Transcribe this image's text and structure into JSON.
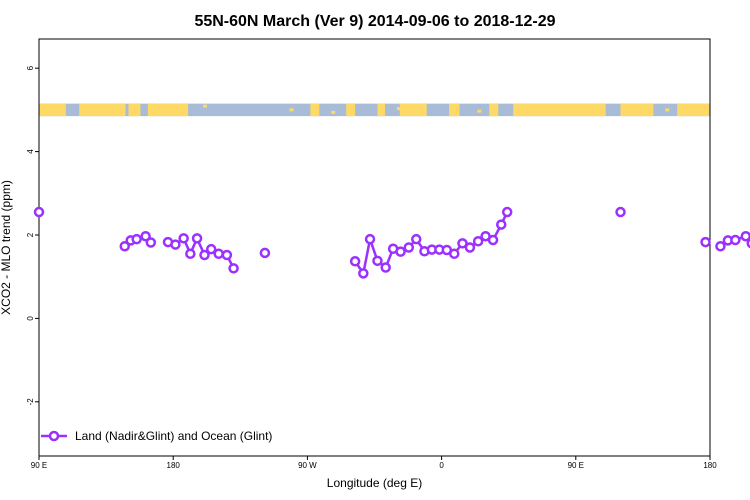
{
  "chart_data": {
    "type": "line",
    "title": "55N-60N March (Ver 9)   2014-09-06 to 2018-12-29",
    "xlabel": "Longitude (deg E)",
    "ylabel": "XCO2 - MLO trend (ppm)",
    "x_axis_range_deg_e": [
      90,
      180
    ],
    "ylim": [
      -3.3,
      6.7
    ],
    "x_tick_labels": [
      "90 E",
      "180",
      "90 W",
      "0",
      "90 E",
      "180"
    ],
    "y_ticks": [
      -2,
      0,
      2,
      4,
      6
    ],
    "grid": false,
    "legend_position": "bottom-left",
    "series": [
      {
        "name": "Land (Nadir&Glint) and Ocean (Glint)",
        "color": "#9b30ff",
        "segments": [
          [
            [
              90,
              2.55
            ]
          ],
          [
            [
              147.5,
              1.73
            ],
            [
              151.5,
              1.87
            ],
            [
              155.5,
              1.9
            ],
            [
              161.5,
              1.97
            ],
            [
              165,
              1.82
            ]
          ],
          [
            [
              176.5,
              1.83
            ],
            [
              181.5,
              1.77
            ],
            [
              187,
              1.92
            ],
            [
              191.5,
              1.55
            ],
            [
              196,
              1.92
            ],
            [
              201,
              1.52
            ],
            [
              205.5,
              1.66
            ],
            [
              210.5,
              1.55
            ],
            [
              216,
              1.52
            ],
            [
              220.5,
              1.2
            ]
          ],
          [
            [
              241.5,
              1.57
            ]
          ],
          [
            [
              302,
              1.37
            ],
            [
              307.5,
              1.08
            ],
            [
              312,
              1.9
            ],
            [
              317,
              1.38
            ],
            [
              322.5,
              1.22
            ],
            [
              327.5,
              1.67
            ],
            [
              332.5,
              1.6
            ],
            [
              338,
              1.7
            ],
            [
              343,
              1.9
            ],
            [
              348.5,
              1.61
            ],
            [
              353.5,
              1.65
            ],
            [
              358.5,
              1.65
            ],
            [
              363.5,
              1.64
            ],
            [
              368.5,
              1.55
            ],
            [
              374,
              1.8
            ],
            [
              379,
              1.7
            ],
            [
              384.5,
              1.85
            ],
            [
              389.5,
              1.97
            ],
            [
              394.5,
              1.88
            ],
            [
              400,
              2.25
            ],
            [
              404,
              2.55
            ]
          ],
          [
            [
              480,
              2.55
            ]
          ],
          [
            [
              547,
              1.73
            ],
            [
              552,
              1.87
            ],
            [
              557,
              1.88
            ],
            [
              564,
              1.97
            ],
            [
              568,
              1.8
            ]
          ],
          [
            [
              537,
              1.83
            ]
          ]
        ]
      }
    ],
    "map_strip": {
      "y_range": [
        4.85,
        5.15
      ],
      "ocean_color": "#a8bcd8",
      "land_color": "#ffd966"
    }
  }
}
